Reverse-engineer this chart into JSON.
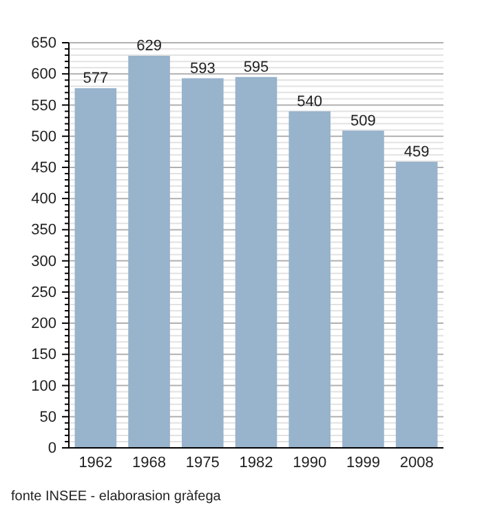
{
  "chart_data": {
    "type": "bar",
    "categories": [
      "1962",
      "1968",
      "1975",
      "1982",
      "1990",
      "1999",
      "2008"
    ],
    "values": [
      577,
      629,
      593,
      595,
      540,
      509,
      459
    ],
    "color": "#98b3cc",
    "data_labels": true,
    "grid": "y",
    "ylim": [
      0,
      650
    ],
    "yticks": [
      0,
      {
        "value": 10,
        "label": null
      },
      {
        "value": 20,
        "label": null
      },
      {
        "value": 30,
        "label": null
      },
      {
        "value": 40,
        "label": null
      },
      50,
      {
        "value": 60,
        "label": null
      },
      {
        "value": 70,
        "label": null
      },
      {
        "value": 80,
        "label": null
      },
      {
        "value": 90,
        "label": null
      },
      100,
      {
        "value": 110,
        "label": null
      },
      {
        "value": 120,
        "label": null
      },
      {
        "value": 130,
        "label": null
      },
      {
        "value": 140,
        "label": null
      },
      150,
      {
        "value": 160,
        "label": null
      },
      {
        "value": 170,
        "label": null
      },
      {
        "value": 180,
        "label": null
      },
      {
        "value": 190,
        "label": null
      },
      200,
      {
        "value": 210,
        "label": null
      },
      {
        "value": 220,
        "label": null
      },
      {
        "value": 230,
        "label": null
      },
      {
        "value": 240,
        "label": null
      },
      250,
      {
        "value": 260,
        "label": null
      },
      {
        "value": 270,
        "label": null
      },
      {
        "value": 280,
        "label": null
      },
      {
        "value": 290,
        "label": null
      },
      300,
      {
        "value": 310,
        "label": null
      },
      {
        "value": 320,
        "label": null
      },
      {
        "value": 330,
        "label": null
      },
      {
        "value": 340,
        "label": null
      },
      350,
      {
        "value": 360,
        "label": null
      },
      {
        "value": 370,
        "label": null
      },
      {
        "value": 380,
        "label": null
      },
      {
        "value": 390,
        "label": null
      },
      400,
      {
        "value": 410,
        "label": null
      },
      {
        "value": 420,
        "label": null
      },
      {
        "value": 430,
        "label": null
      },
      {
        "value": 440,
        "label": null
      },
      450,
      {
        "value": 460,
        "label": null
      },
      {
        "value": 470,
        "label": null
      },
      {
        "value": 480,
        "label": null
      },
      {
        "value": 490,
        "label": null
      },
      500,
      {
        "value": 510,
        "label": null
      },
      {
        "value": 520,
        "label": null
      },
      {
        "value": 530,
        "label": null
      },
      {
        "value": 540,
        "label": null
      },
      550,
      {
        "value": 560,
        "label": null
      },
      {
        "value": 570,
        "label": null
      },
      {
        "value": 580,
        "label": null
      },
      {
        "value": 590,
        "label": null
      },
      600,
      {
        "value": 610,
        "label": null
      },
      {
        "value": 620,
        "label": null
      },
      {
        "value": 630,
        "label": null
      },
      {
        "value": 640,
        "label": null
      },
      650
    ],
    "annotations": [
      "fonte INSEE - elaborasion gràfega"
    ]
  }
}
